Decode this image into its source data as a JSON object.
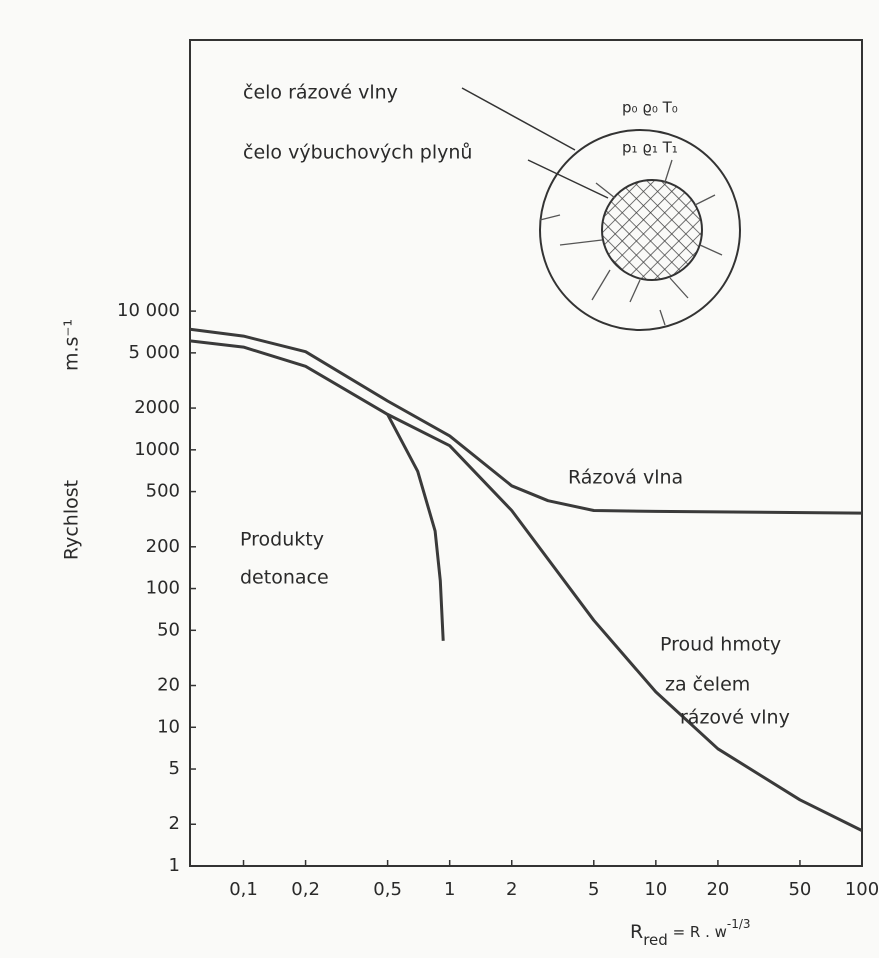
{
  "chart_data": {
    "type": "line",
    "y_label": "Rychlost",
    "y_unit": "m.s⁻¹",
    "x_label": "R",
    "x_label_sub": "red",
    "x_label_mid": " = R . w",
    "x_label_sup": "-1/3",
    "log_x": true,
    "log_y": true,
    "grid": false,
    "xlim": [
      0.055,
      100
    ],
    "ylim": [
      1,
      900000
    ],
    "xticks": [
      {
        "value": 0.1,
        "label": "0,1"
      },
      {
        "value": 0.2,
        "label": "0,2"
      },
      {
        "value": 0.5,
        "label": "0,5"
      },
      1,
      2,
      5,
      10,
      20,
      50,
      100
    ],
    "yticks": [
      1,
      2,
      5,
      10,
      20,
      50,
      100,
      200,
      500,
      1000,
      2000,
      {
        "value": 5000,
        "label": "5 000"
      },
      {
        "value": 10000,
        "label": "10 000"
      }
    ],
    "series": [
      {
        "color": "#3a3a3a",
        "x": [
          0.055,
          0.1,
          0.2,
          0.5,
          1,
          2,
          3,
          5,
          10,
          100
        ],
        "values": [
          7400,
          6600,
          5100,
          2250,
          1260,
          550,
          430,
          365,
          360,
          350
        ]
      },
      {
        "color": "#3a3a3a",
        "x": [
          0.055,
          0.1,
          0.2,
          0.5,
          1,
          2,
          5,
          10,
          20,
          50,
          100
        ],
        "values": [
          6100,
          5500,
          4000,
          1800,
          1070,
          365,
          59,
          18,
          7,
          3,
          1.8
        ]
      },
      {
        "color": "#3a3a3a",
        "x": [
          0.5,
          0.7,
          0.85,
          0.9,
          0.93
        ],
        "values": [
          1800,
          700,
          260,
          114,
          42
        ]
      }
    ],
    "annotations": [
      "Rázová vlna",
      "Produkty",
      "detonace",
      "Proud hmoty",
      "za čelem",
      "rázové vlny"
    ],
    "inset": {
      "shock_front": "čelo rázové vlny",
      "gas_front": "čelo výbuchových plynů",
      "outer_state": "p₀ ϱ₀ T₀",
      "inner_state": "p₁ ϱ₁ T₁"
    }
  }
}
